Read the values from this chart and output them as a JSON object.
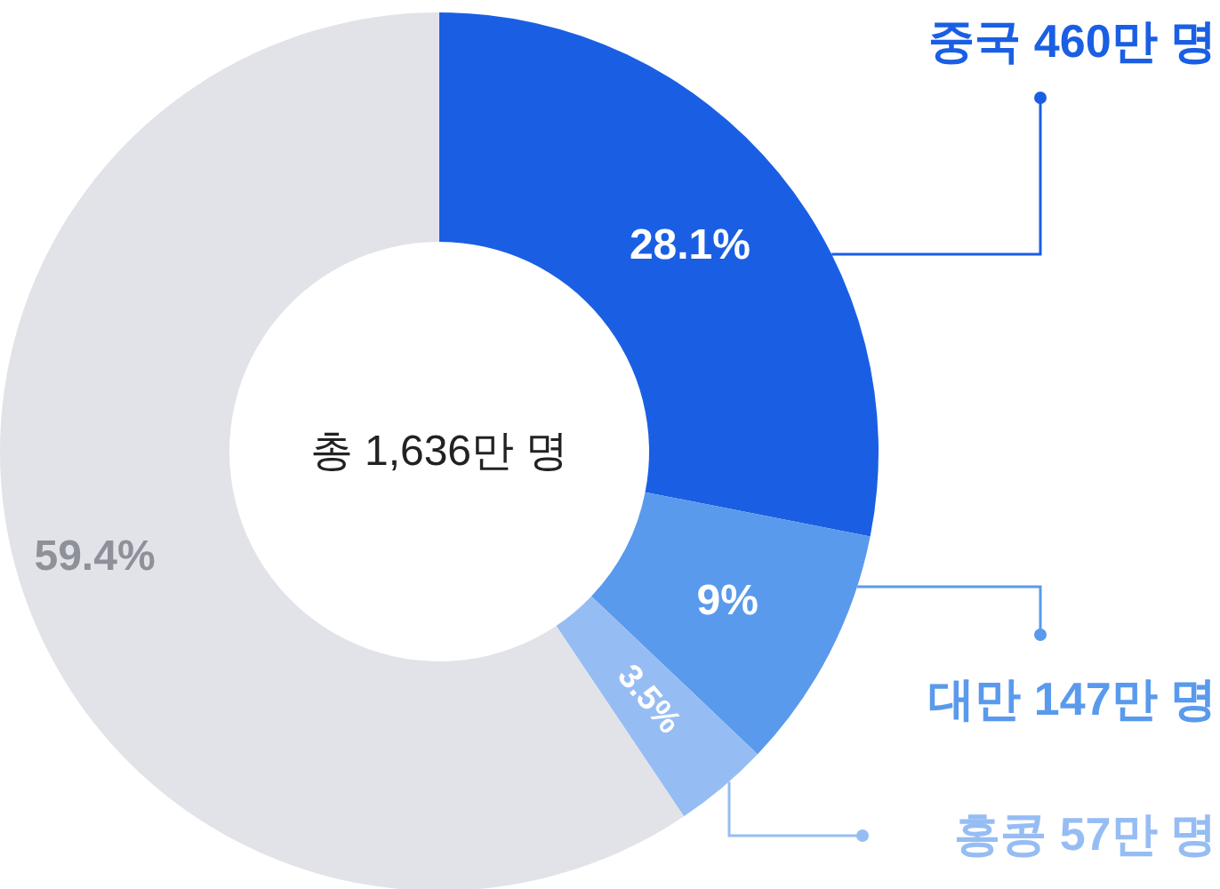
{
  "chart_data": {
    "type": "donut",
    "categories": [
      "중국 460만 명",
      "대만 147만 명",
      "홍콩 57만 명",
      null
    ],
    "values": [
      28.1,
      9,
      3.5,
      59.4
    ],
    "value_labels": [
      "28.1%",
      "9%",
      "3.5%",
      "59.4%"
    ],
    "colors": [
      "#1a5fe3",
      "#5a9aec",
      "#96bdf3",
      "#e2e3e8"
    ],
    "annotations": [
      "총 1,636만 명"
    ]
  }
}
